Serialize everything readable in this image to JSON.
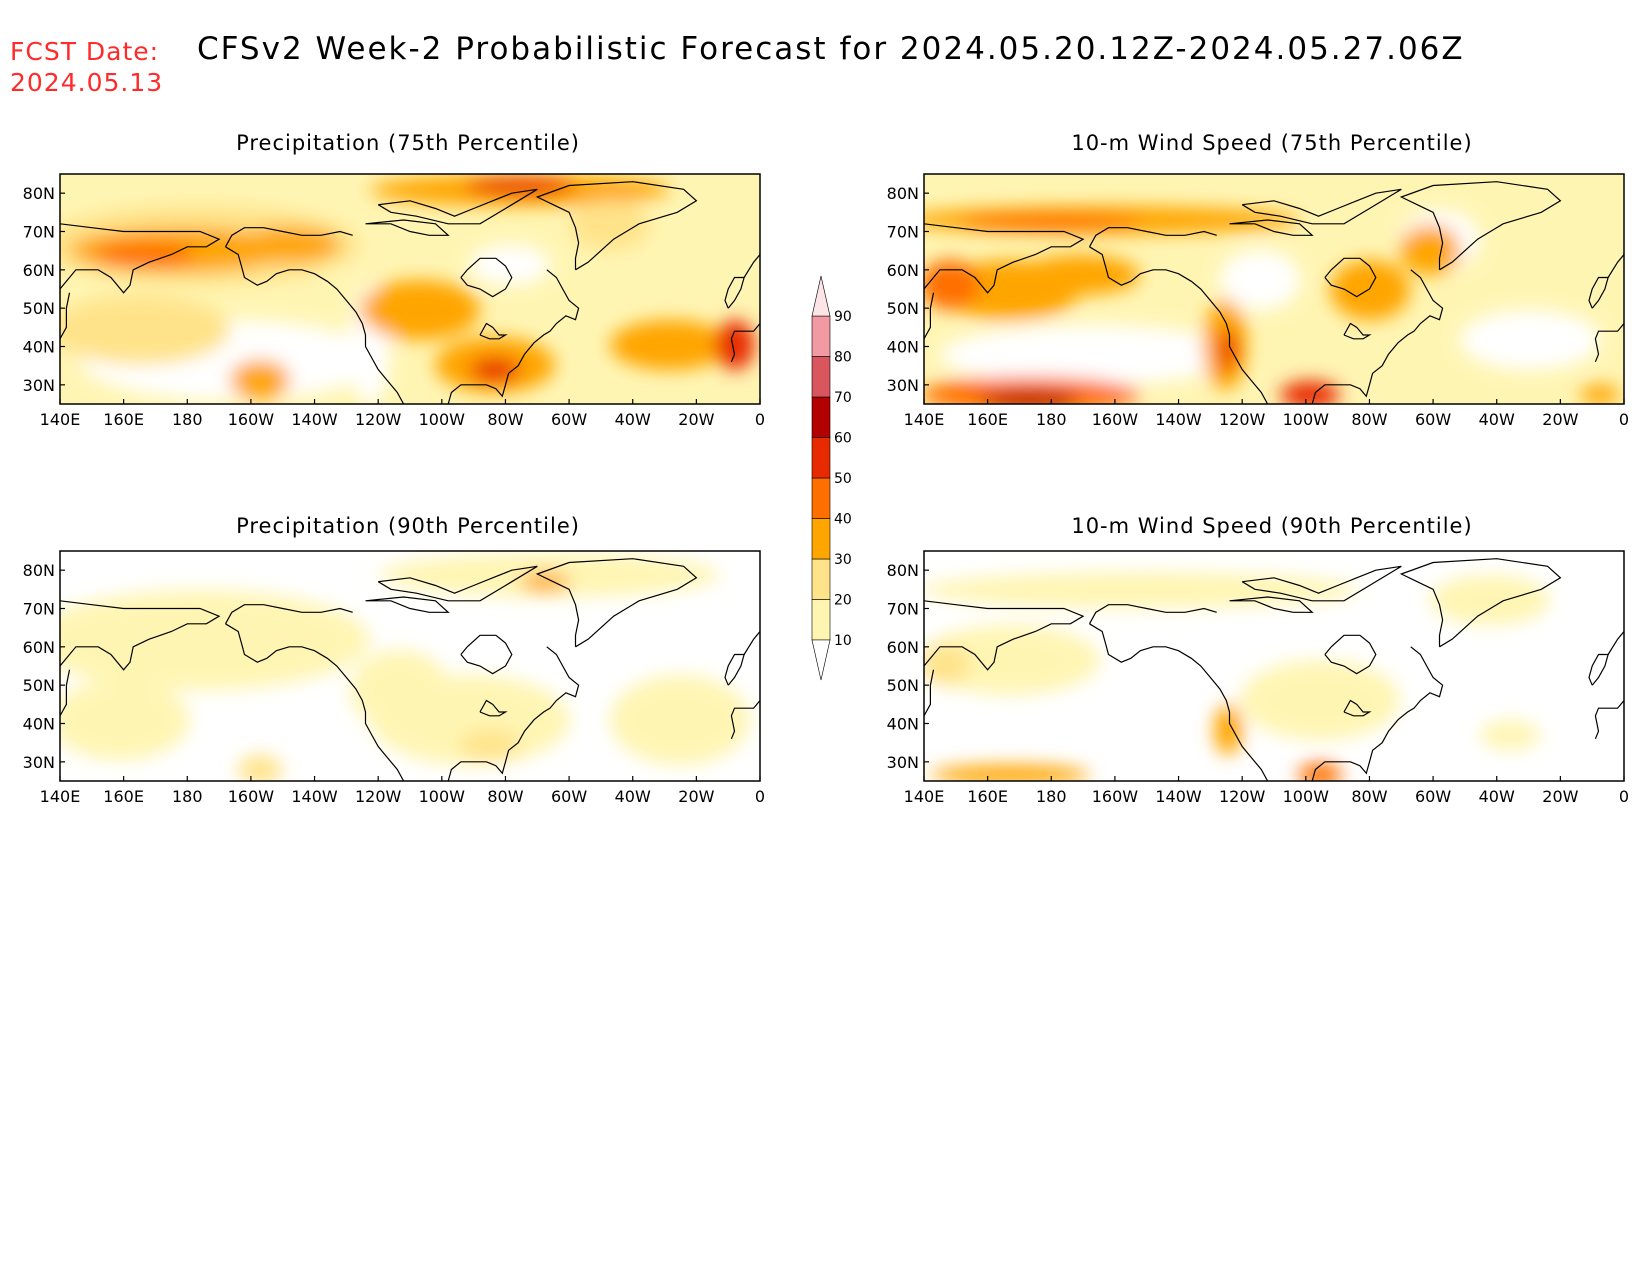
{
  "header": {
    "fcst_label": "FCST Date:",
    "fcst_date": "2024.05.13",
    "title": "CFSv2 Week-2 Probabilistic Forecast for 2024.05.20.12Z-2024.05.27.06Z"
  },
  "panels": [
    {
      "title": "Precipitation (75th Percentile)",
      "variable": "precipitation",
      "percentile": 75
    },
    {
      "title": "10-m Wind Speed (75th Percentile)",
      "variable": "wind",
      "percentile": 75
    },
    {
      "title": "Precipitation (90th Percentile)",
      "variable": "precipitation",
      "percentile": 90
    },
    {
      "title": "10-m Wind Speed (90th Percentile)",
      "variable": "wind",
      "percentile": 90
    }
  ],
  "axes": {
    "lat_labels": [
      "80N",
      "70N",
      "60N",
      "50N",
      "40N",
      "30N"
    ],
    "lat_values": [
      80,
      70,
      60,
      50,
      40,
      30
    ],
    "lon_labels": [
      "140E",
      "160E",
      "180",
      "160W",
      "140W",
      "120W",
      "100W",
      "80W",
      "60W",
      "40W",
      "20W",
      "0"
    ],
    "lon_values": [
      140,
      160,
      180,
      200,
      220,
      240,
      260,
      280,
      300,
      320,
      340,
      360
    ],
    "lon_range": [
      140,
      360
    ],
    "lat_range": [
      25,
      85
    ]
  },
  "colorbar": {
    "levels": [
      10,
      20,
      30,
      40,
      50,
      60,
      70,
      80,
      90
    ],
    "colors": [
      "#fff5b3",
      "#ffe38a",
      "#ffa500",
      "#ff6f00",
      "#e82a00",
      "#b30000",
      "#d9565f",
      "#f19aa4"
    ]
  }
}
